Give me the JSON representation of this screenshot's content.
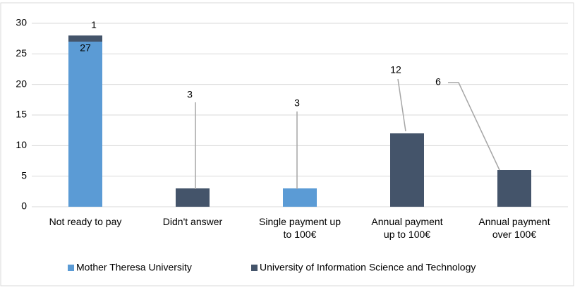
{
  "chart_data": {
    "type": "stacked_bar",
    "categories": [
      [
        "Not ready to pay"
      ],
      [
        "Didn't answer"
      ],
      [
        "Single payment up",
        "to 100€"
      ],
      [
        "Annual payment",
        "up to 100€"
      ],
      [
        "Annual payment",
        "over 100€"
      ]
    ],
    "series": [
      {
        "name": "Mother Theresa University",
        "color": "#5b9bd5",
        "values": [
          27,
          null,
          3,
          null,
          null
        ]
      },
      {
        "name": "University of Information Science and Technology",
        "color": "#44546a",
        "values": [
          1,
          3,
          null,
          12,
          6
        ]
      }
    ],
    "ylim": [
      0,
      30
    ],
    "yticks": [
      0,
      5,
      10,
      15,
      20,
      25,
      30
    ],
    "grid": true,
    "legend": "bottom"
  }
}
